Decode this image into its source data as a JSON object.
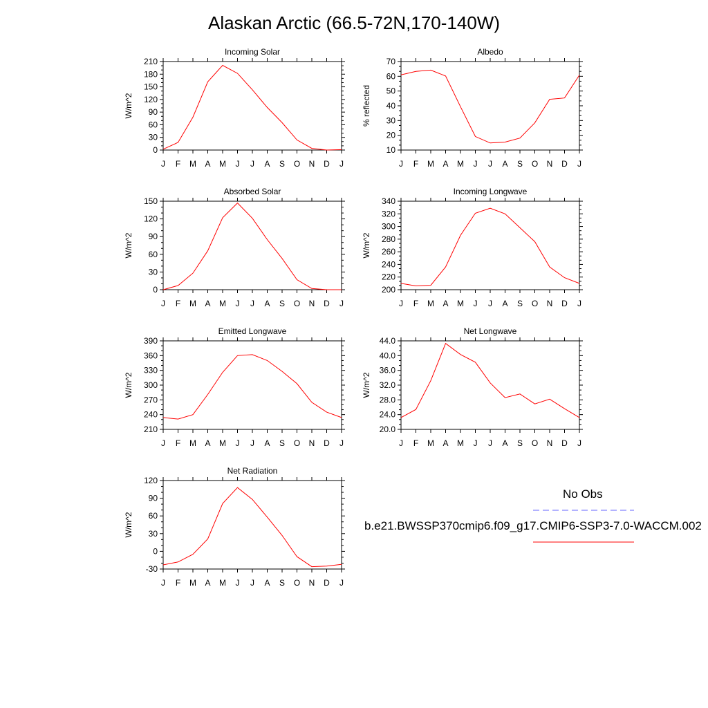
{
  "title": "Alaskan Arctic (66.5-72N,170-140W)",
  "months": [
    "J",
    "F",
    "M",
    "A",
    "M",
    "J",
    "J",
    "A",
    "S",
    "O",
    "N",
    "D",
    "J"
  ],
  "legend": {
    "obs_label": "No Obs",
    "obs_color": "#6666ff",
    "run_label": "b.e21.BWSSP370cmip6.f09_g17.CMIP6-SSP3-7.0-WACCM.002",
    "run_color": "#ff0000"
  },
  "chart_data": [
    {
      "type": "line",
      "title": "Incoming Solar",
      "ylabel": "W/m^2",
      "ylim": [
        0,
        210
      ],
      "yticks": [
        "0",
        "30",
        "60",
        "90",
        "120",
        "150",
        "180",
        "210"
      ],
      "series": [
        {
          "name": "b.e21.BWSSP370cmip6.f09_g17.CMIP6-SSP3-7.0-WACCM.002",
          "values": [
            2,
            18,
            78,
            162,
            201,
            182,
            143,
            101,
            65,
            24,
            4,
            0,
            1
          ]
        }
      ]
    },
    {
      "type": "line",
      "title": "Albedo",
      "ylabel": "% reflected",
      "ylim": [
        10,
        70
      ],
      "yticks": [
        "10",
        "20",
        "30",
        "40",
        "50",
        "60",
        "70"
      ],
      "series": [
        {
          "name": "b.e21.BWSSP370cmip6.f09_g17.CMIP6-SSP3-7.0-WACCM.002",
          "values": [
            61,
            63.3,
            64.2,
            60.2,
            39.4,
            19.2,
            14.8,
            15.4,
            18.1,
            28.4,
            44.4,
            45.3,
            60.8
          ]
        }
      ]
    },
    {
      "type": "line",
      "title": "Absorbed Solar",
      "ylabel": "W/m^2",
      "ylim": [
        0,
        150
      ],
      "yticks": [
        "0",
        "30",
        "60",
        "90",
        "120",
        "150"
      ],
      "series": [
        {
          "name": "b.e21.BWSSP370cmip6.f09_g17.CMIP6-SSP3-7.0-WACCM.002",
          "values": [
            0,
            7,
            28,
            66,
            122,
            147,
            121,
            85,
            53,
            17,
            2,
            0,
            0
          ]
        }
      ]
    },
    {
      "type": "line",
      "title": "Incoming Longwave",
      "ylabel": "W/m^2",
      "ylim": [
        200,
        340
      ],
      "yticks": [
        "200",
        "220",
        "240",
        "260",
        "280",
        "300",
        "320",
        "340"
      ],
      "series": [
        {
          "name": "b.e21.BWSSP370cmip6.f09_g17.CMIP6-SSP3-7.0-WACCM.002",
          "values": [
            210,
            206,
            207,
            236,
            286,
            321,
            329,
            320,
            298,
            276,
            236,
            219,
            210
          ]
        }
      ]
    },
    {
      "type": "line",
      "title": "Emitted Longwave",
      "ylabel": "W/m^2",
      "ylim": [
        210,
        390
      ],
      "yticks": [
        "210",
        "240",
        "270",
        "300",
        "330",
        "360",
        "390"
      ],
      "series": [
        {
          "name": "b.e21.BWSSP370cmip6.f09_g17.CMIP6-SSP3-7.0-WACCM.002",
          "values": [
            234,
            231,
            240,
            281,
            326,
            360,
            362,
            350,
            328,
            303,
            265,
            245,
            234
          ]
        }
      ]
    },
    {
      "type": "line",
      "title": "Net Longwave",
      "ylabel": "W/m^2",
      "ylim": [
        20,
        44
      ],
      "yticks": [
        "20.0",
        "24.0",
        "28.0",
        "32.0",
        "36.0",
        "40.0",
        "44.0"
      ],
      "series": [
        {
          "name": "b.e21.BWSSP370cmip6.f09_g17.CMIP6-SSP3-7.0-WACCM.002",
          "values": [
            23.2,
            25.4,
            33.2,
            43.3,
            40.3,
            38.2,
            32.6,
            28.6,
            29.6,
            26.9,
            28.2,
            25.6,
            23.2
          ]
        }
      ]
    },
    {
      "type": "line",
      "title": "Net Radiation",
      "ylabel": "W/m^2",
      "ylim": [
        -30,
        120
      ],
      "yticks": [
        "-30",
        "0",
        "30",
        "60",
        "90",
        "120"
      ],
      "series": [
        {
          "name": "b.e21.BWSSP370cmip6.f09_g17.CMIP6-SSP3-7.0-WACCM.002",
          "values": [
            -23,
            -18,
            -5,
            21,
            81,
            108,
            88,
            58,
            27,
            -9,
            -26,
            -25,
            -22
          ]
        }
      ]
    }
  ]
}
